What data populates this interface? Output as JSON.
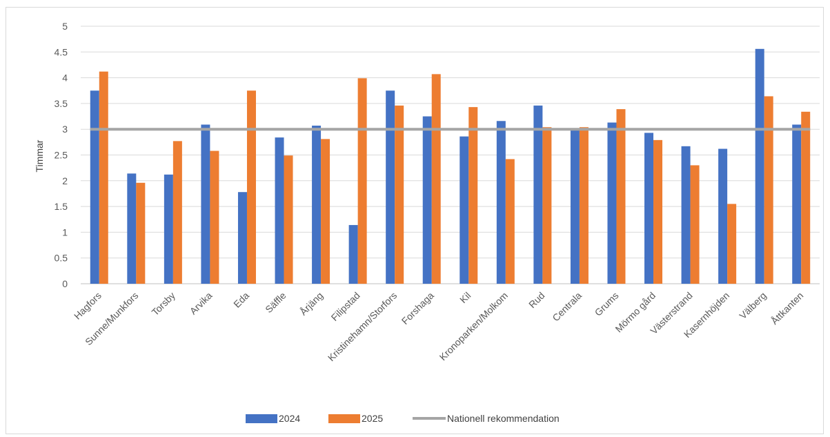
{
  "chart_data": {
    "type": "bar",
    "title": "",
    "xlabel": "",
    "ylabel": "Timmar",
    "ylim": [
      0,
      5
    ],
    "yticks": [
      0,
      0.5,
      1,
      1.5,
      2,
      2.5,
      3,
      3.5,
      4,
      4.5,
      5
    ],
    "ytick_labels": [
      "0",
      "0.5",
      "1",
      "1.5",
      "2",
      "2.5",
      "3",
      "3.5",
      "4",
      "4.5",
      "5"
    ],
    "grid": true,
    "legend_position": "bottom",
    "categories": [
      "Hagfors",
      "Sunne/Munkfors",
      "Torsby",
      "Arvika",
      "Eda",
      "Säffle",
      "Årjäng",
      "Filipstad",
      "Kristinehamn/Storfors",
      "Forshaga",
      "Kil",
      "Kronoparken/Molkom",
      "Rud",
      "Centrala",
      "Grums",
      "Mörmo gård",
      "Västerstrand",
      "Kasernhöjden",
      "Välberg",
      "Åttkanten"
    ],
    "series": [
      {
        "name": "2024",
        "color": "#4472C4",
        "values": [
          3.75,
          2.14,
          2.12,
          3.09,
          1.78,
          2.84,
          3.07,
          1.14,
          3.75,
          3.25,
          2.86,
          3.16,
          3.46,
          2.99,
          3.13,
          2.93,
          2.67,
          2.62,
          4.56,
          3.09
        ]
      },
      {
        "name": "2025",
        "color": "#ED7D31",
        "values": [
          4.12,
          1.96,
          2.77,
          2.58,
          3.75,
          2.49,
          2.81,
          3.99,
          3.46,
          4.07,
          3.43,
          2.42,
          3.04,
          3.04,
          3.39,
          2.79,
          2.3,
          1.55,
          3.64,
          3.34
        ]
      }
    ],
    "reference_line": {
      "name": "Nationell rekommendation",
      "value": 3,
      "color": "#A5A5A5"
    }
  }
}
